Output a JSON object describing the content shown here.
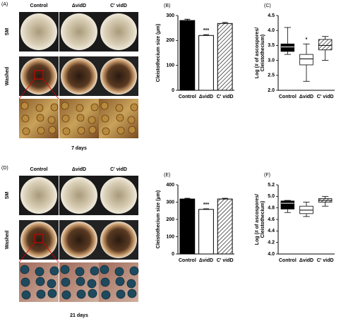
{
  "figure": {
    "panels": [
      {
        "label": "(A)",
        "columns": [
          "Control",
          "ΔvidD",
          "C' vidD"
        ],
        "rows": [
          "SM",
          "Washed"
        ],
        "caption": "7 days"
      },
      {
        "label": "(D)",
        "columns": [
          "Control",
          "ΔvidD",
          "C' vidD"
        ],
        "rows": [
          "SM",
          "Washed"
        ],
        "caption": "21 days"
      }
    ]
  },
  "chart_data": [
    {
      "type": "bar",
      "panel_label": "(B)",
      "y_label": "Cleistothecium size (μm)",
      "categories": [
        "Control",
        "ΔvidD",
        "C' vidD"
      ],
      "values": [
        280,
        220,
        268
      ],
      "errors": [
        5,
        3,
        4
      ],
      "annotations": [
        null,
        "***",
        null
      ],
      "styles": [
        "solid",
        "open",
        "hatched"
      ],
      "ylim": [
        0,
        300
      ],
      "yticks": [
        0,
        100,
        200,
        300
      ]
    },
    {
      "type": "box",
      "panel_label": "(C)",
      "y_label": [
        "Log (# of ascospores/",
        "Cleistothecium)"
      ],
      "categories": [
        "Control",
        "ΔvidD",
        "C' vidD"
      ],
      "min": [
        3.2,
        2.3,
        3.0
      ],
      "q1": [
        3.3,
        2.85,
        3.35
      ],
      "median": [
        3.45,
        3.05,
        3.5
      ],
      "q3": [
        3.55,
        3.2,
        3.7
      ],
      "max": [
        4.1,
        3.55,
        3.8
      ],
      "annotations": [
        null,
        "*",
        null
      ],
      "styles": [
        "solid",
        "open",
        "hatched"
      ],
      "ylim": [
        2.0,
        4.5
      ],
      "yticks": [
        {
          "value": 2.0,
          "label": "2.0"
        },
        2.5,
        {
          "value": 3.0,
          "label": "3.0"
        },
        3.5,
        {
          "value": 4.0,
          "label": "4.0"
        },
        4.5
      ]
    },
    {
      "type": "bar",
      "panel_label": "(E)",
      "y_label": "Cleistothecium size (μm)",
      "categories": [
        "Control",
        "ΔvidD",
        "C' vidD"
      ],
      "values": [
        318,
        258,
        318
      ],
      "errors": [
        4,
        3,
        4
      ],
      "annotations": [
        null,
        "***",
        null
      ],
      "styles": [
        "solid",
        "open",
        "hatched"
      ],
      "ylim": [
        0,
        400
      ],
      "yticks": [
        0,
        100,
        200,
        300,
        400
      ]
    },
    {
      "type": "box",
      "panel_label": "(F)",
      "y_label": [
        "Log (# of ascospores/",
        "Cleistothecium)"
      ],
      "categories": [
        "Control",
        "ΔvidD",
        "C' vidD"
      ],
      "min": [
        4.72,
        4.65,
        4.83
      ],
      "q1": [
        4.78,
        4.7,
        4.9
      ],
      "median": [
        4.88,
        4.76,
        4.93
      ],
      "q3": [
        4.92,
        4.83,
        4.96
      ],
      "max": [
        4.93,
        4.9,
        5.0
      ],
      "annotations": [
        null,
        null,
        null
      ],
      "styles": [
        "solid",
        "open",
        "hatched"
      ],
      "ylim": [
        4.0,
        5.2
      ],
      "yticks": [
        {
          "value": 4.0,
          "label": "4.0"
        },
        4.2,
        4.4,
        4.6,
        4.8,
        {
          "value": 5.0,
          "label": "5.0"
        },
        5.2
      ]
    }
  ]
}
